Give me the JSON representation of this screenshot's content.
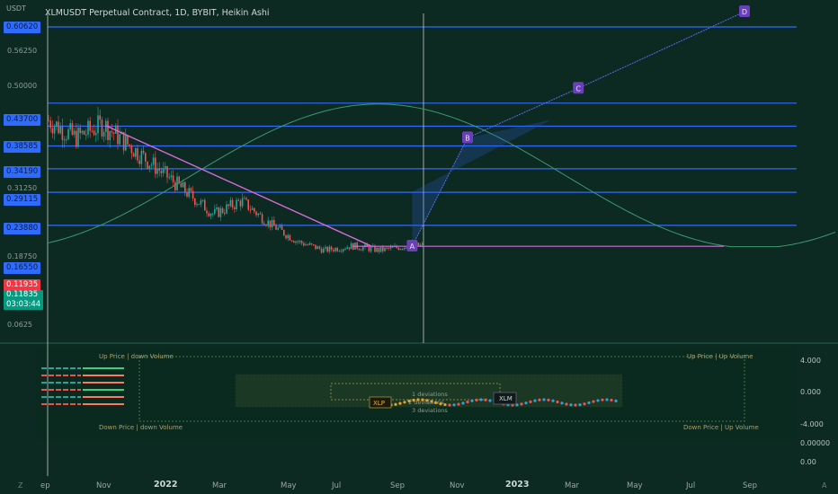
{
  "header": {
    "currency": "USDT",
    "title": "XLMUSDT Perpetual Contract, 1D, BYBIT, Heikin Ashi"
  },
  "price_labels": [
    {
      "text": "0.60620",
      "style": "blue"
    },
    {
      "text": "0.56250",
      "style": "plain"
    },
    {
      "text": "0.50000",
      "style": "plain"
    },
    {
      "text": "0.43700",
      "style": "blue"
    },
    {
      "text": "0.38585",
      "style": "blue"
    },
    {
      "text": "0.34190",
      "style": "blue"
    },
    {
      "text": "0.31250",
      "style": "plain"
    },
    {
      "text": "0.29115",
      "style": "blue"
    },
    {
      "text": "0.23880",
      "style": "blue"
    },
    {
      "text": "0.18750",
      "style": "plain"
    },
    {
      "text": "0.16550",
      "style": "blue"
    },
    {
      "text": "0.11935",
      "style": "red"
    },
    {
      "text": "0.0625",
      "style": "plain"
    }
  ],
  "last_price": {
    "value": "0.11835",
    "countdown": "03:03:44"
  },
  "x_ticks": [
    {
      "text": "ep",
      "bold": false
    },
    {
      "text": "Nov",
      "bold": false
    },
    {
      "text": "2022",
      "bold": true
    },
    {
      "text": "Mar",
      "bold": false
    },
    {
      "text": "May",
      "bold": false
    },
    {
      "text": "Jul",
      "bold": false
    },
    {
      "text": "Sep",
      "bold": false
    },
    {
      "text": "Nov",
      "bold": false
    },
    {
      "text": "2023",
      "bold": true
    },
    {
      "text": "Mar",
      "bold": false
    },
    {
      "text": "May",
      "bold": false
    },
    {
      "text": "Jul",
      "bold": false
    },
    {
      "text": "Sep",
      "bold": false
    }
  ],
  "markers": [
    "A",
    "B",
    "C",
    "D"
  ],
  "indicator": {
    "axis_labels": [
      "4.000",
      "0.000",
      "-4.000",
      "0.00000",
      "0.00"
    ],
    "quadrants": {
      "top_left": "Up Price | down Volume",
      "top_right": "Up Price | Up Volume",
      "bottom_left": "Down Price | down Volume",
      "bottom_right": "Down Price | Up Volume"
    },
    "deviations": [
      "1 deviations",
      "2 deviations",
      "3 deviations"
    ],
    "tags": [
      "XLP",
      "XLM"
    ]
  },
  "corner_labels": {
    "left": "Z",
    "right": "A"
  },
  "colors": {
    "background": "#0c2a22",
    "level": "#2f6bff",
    "up": "#26a69a",
    "down": "#ef5350",
    "trend": "#d86bd8",
    "marker": "#6a3fb8"
  },
  "chart_data": {
    "type": "line",
    "title": "XLMUSDT Perpetual Contract, 1D, BYBIT, Heikin Ashi",
    "xlabel": "",
    "ylabel": "USDT",
    "ylim": [
      0.04,
      0.64
    ],
    "x": [
      "2021-09",
      "2021-10",
      "2021-11",
      "2021-12",
      "2022-01",
      "2022-02",
      "2022-03",
      "2022-04",
      "2022-05",
      "2022-06",
      "2022-07",
      "2022-08",
      "2022-09",
      "2022-10"
    ],
    "series": [
      {
        "values": [
          0.4,
          0.36,
          0.39,
          0.34,
          0.29,
          0.24,
          0.19,
          0.22,
          0.17,
          0.13,
          0.11,
          0.12,
          0.11,
          0.12
        ]
      }
    ],
    "horizontal_levels": [
      0.6062,
      0.437,
      0.38585,
      0.3419,
      0.29115,
      0.2388,
      0.1655
    ],
    "projection_points": [
      {
        "label": "A",
        "x": "2022-10",
        "y": 0.11935
      },
      {
        "label": "B",
        "x": "2022-12",
        "y": 0.36
      },
      {
        "label": "C",
        "x": "2023-04",
        "y": 0.47
      },
      {
        "label": "D",
        "x": "2023-10",
        "y": 0.64
      }
    ]
  }
}
